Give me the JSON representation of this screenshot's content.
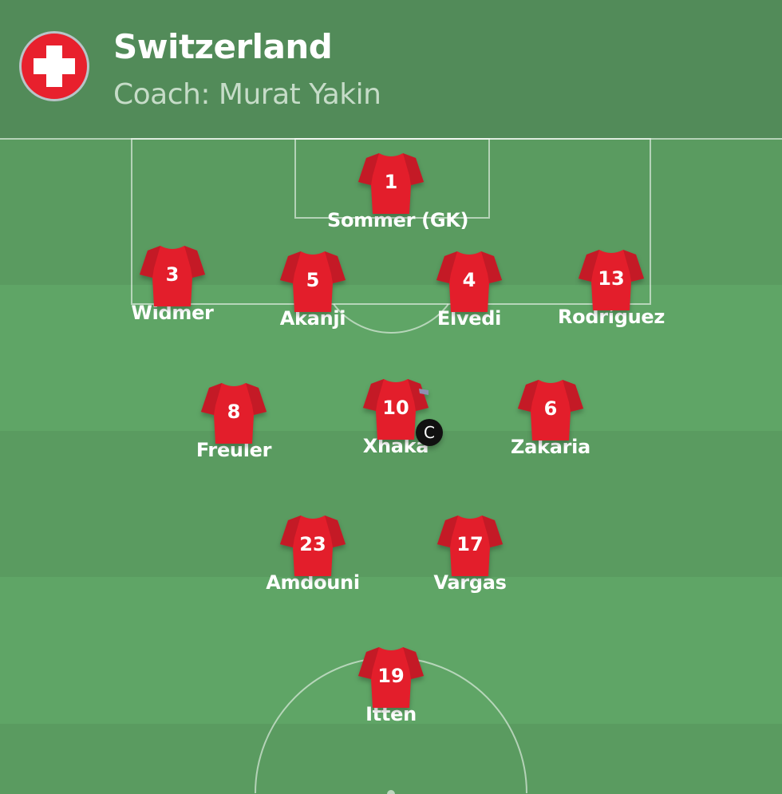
{
  "team": {
    "name": "Switzerland",
    "coach": "Coach: Murat Yakin",
    "flag_icon": "swiss-flag-icon",
    "kit_color": "#e31e2b"
  },
  "players": [
    {
      "number": "1",
      "name": "Sommer (GK)"
    },
    {
      "number": "3",
      "name": "Widmer"
    },
    {
      "number": "5",
      "name": "Akanji"
    },
    {
      "number": "4",
      "name": "Elvedi"
    },
    {
      "number": "13",
      "name": "Rodríguez"
    },
    {
      "number": "8",
      "name": "Freuler"
    },
    {
      "number": "10",
      "name": "Xhaka",
      "captain": "C"
    },
    {
      "number": "6",
      "name": "Zakaria"
    },
    {
      "number": "23",
      "name": "Amdouni"
    },
    {
      "number": "17",
      "name": "Vargas"
    },
    {
      "number": "19",
      "name": "Itten"
    }
  ]
}
